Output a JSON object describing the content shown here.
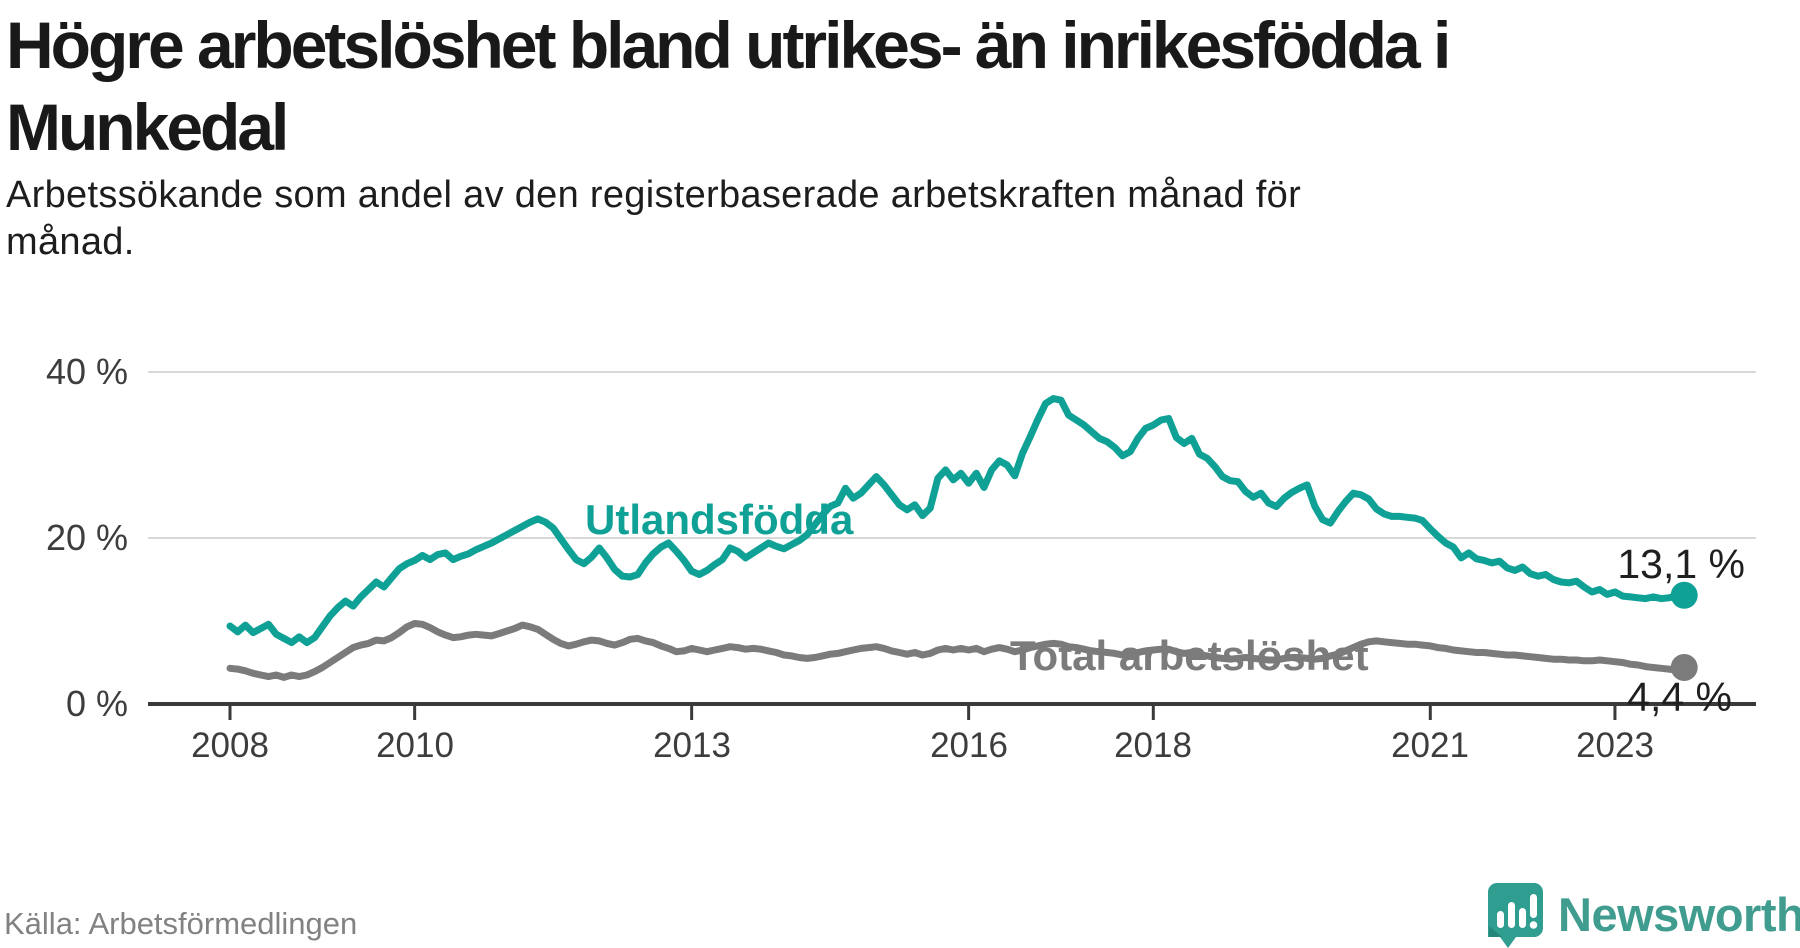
{
  "header": {
    "title_lines": [
      "Högre arbetslöshet bland utrikes- än inrikesfödda i",
      "Munkedal"
    ],
    "subtitle_lines": [
      "Arbetssökande som andel av den registerbaserade arbetskraften månad för",
      "månad."
    ]
  },
  "chart_data": {
    "type": "line",
    "title": "Högre arbetslöshet bland utrikes- än inrikesfödda i Munkedal",
    "subtitle": "Arbetssökande som andel av den registerbaserade arbetskraften månad för månad.",
    "grid": "horizontal",
    "legend_position": "inline-labels-on-lines",
    "x_axis": {
      "tick_labels": [
        "2008",
        "2010",
        "2013",
        "2016",
        "2018",
        "2021",
        "2023"
      ],
      "tick_years": [
        2008,
        2010,
        2013,
        2016,
        2018,
        2021,
        2023
      ],
      "range_years": [
        2008.0,
        2023.75
      ]
    },
    "y_axis": {
      "tick_labels": [
        "40 %",
        "20 %",
        "0 %"
      ],
      "tick_values": [
        40,
        20,
        0
      ],
      "unit": "%",
      "range": [
        0,
        42
      ]
    },
    "series": [
      {
        "name": "Utlandsfödda",
        "color": "#0fa096",
        "end_label": "13,1 %",
        "end_value": 13.1,
        "start_year": 2008,
        "points_per_year": 12,
        "values": [
          9.4,
          8.7,
          9.5,
          8.6,
          9.1,
          9.6,
          8.4,
          7.9,
          7.4,
          8.1,
          7.4,
          8.0,
          9.3,
          10.6,
          11.6,
          12.4,
          11.8,
          12.9,
          13.8,
          14.7,
          14.1,
          15.2,
          16.3,
          16.9,
          17.3,
          17.9,
          17.4,
          18.0,
          18.2,
          17.4,
          17.8,
          18.1,
          18.6,
          19.0,
          19.4,
          19.9,
          20.4,
          20.9,
          21.4,
          21.9,
          22.3,
          21.9,
          21.2,
          19.9,
          18.6,
          17.4,
          16.9,
          17.7,
          18.8,
          17.6,
          16.2,
          15.4,
          15.3,
          15.6,
          17.0,
          18.1,
          18.9,
          19.4,
          18.4,
          17.3,
          16.0,
          15.6,
          16.1,
          16.8,
          17.4,
          18.8,
          18.4,
          17.6,
          18.2,
          18.8,
          19.4,
          19.0,
          18.7,
          19.2,
          19.7,
          20.4,
          21.6,
          22.8,
          23.8,
          24.2,
          26.0,
          24.8,
          25.4,
          26.4,
          27.4,
          26.4,
          25.2,
          24.0,
          23.4,
          24.0,
          22.7,
          23.6,
          27.2,
          28.2,
          27.0,
          27.8,
          26.6,
          27.8,
          26.1,
          28.2,
          29.3,
          28.8,
          27.5,
          30.2,
          32.2,
          34.3,
          36.2,
          36.8,
          36.6,
          34.8,
          34.2,
          33.6,
          32.8,
          32.0,
          31.6,
          30.9,
          29.9,
          30.4,
          32.0,
          33.2,
          33.6,
          34.2,
          34.4,
          32.1,
          31.4,
          32.0,
          30.1,
          29.6,
          28.6,
          27.4,
          26.9,
          26.8,
          25.6,
          24.9,
          25.4,
          24.2,
          23.8,
          24.8,
          25.5,
          26.0,
          26.4,
          23.8,
          22.2,
          21.8,
          23.2,
          24.4,
          25.4,
          25.2,
          24.7,
          23.5,
          22.9,
          22.6,
          22.6,
          22.5,
          22.4,
          22.1,
          21.1,
          20.2,
          19.4,
          18.9,
          17.6,
          18.2,
          17.5,
          17.3,
          17.0,
          17.2,
          16.4,
          16.1,
          16.5,
          15.7,
          15.4,
          15.6,
          15.0,
          14.7,
          14.6,
          14.8,
          14.1,
          13.5,
          13.8,
          13.2,
          13.5,
          13.0,
          12.9,
          12.8,
          12.7,
          12.9,
          12.7,
          12.8,
          13.0,
          13.1
        ]
      },
      {
        "name": "Total arbetslöshet",
        "color": "#7b7b7b",
        "end_label": "4,4 %",
        "end_value": 4.4,
        "start_year": 2008,
        "points_per_year": 12,
        "values": [
          4.3,
          4.2,
          4.0,
          3.7,
          3.5,
          3.3,
          3.5,
          3.2,
          3.5,
          3.3,
          3.5,
          3.9,
          4.4,
          5.0,
          5.6,
          6.2,
          6.8,
          7.1,
          7.3,
          7.7,
          7.6,
          8.0,
          8.6,
          9.3,
          9.7,
          9.6,
          9.2,
          8.7,
          8.3,
          8.0,
          8.1,
          8.3,
          8.4,
          8.3,
          8.2,
          8.5,
          8.8,
          9.1,
          9.5,
          9.3,
          9.0,
          8.4,
          7.8,
          7.3,
          7.0,
          7.2,
          7.5,
          7.7,
          7.6,
          7.3,
          7.1,
          7.4,
          7.8,
          7.9,
          7.6,
          7.4,
          7.0,
          6.7,
          6.3,
          6.4,
          6.7,
          6.5,
          6.3,
          6.5,
          6.7,
          6.9,
          6.8,
          6.6,
          6.7,
          6.6,
          6.4,
          6.2,
          5.9,
          5.8,
          5.6,
          5.5,
          5.6,
          5.8,
          6.0,
          6.1,
          6.3,
          6.5,
          6.7,
          6.8,
          6.9,
          6.7,
          6.4,
          6.2,
          6.0,
          6.2,
          5.9,
          6.1,
          6.5,
          6.7,
          6.5,
          6.7,
          6.5,
          6.7,
          6.3,
          6.6,
          6.8,
          6.6,
          6.3,
          6.5,
          6.8,
          7.0,
          7.2,
          7.3,
          7.2,
          6.9,
          6.8,
          6.6,
          6.4,
          6.3,
          6.2,
          6.1,
          5.9,
          6.0,
          6.2,
          6.4,
          6.5,
          6.6,
          6.6,
          6.3,
          6.1,
          6.2,
          5.9,
          5.8,
          5.6,
          5.5,
          5.4,
          5.5,
          5.6,
          5.5,
          5.4,
          5.3,
          5.3,
          5.5,
          5.6,
          5.6,
          5.5,
          5.4,
          5.5,
          5.8,
          6.0,
          6.4,
          6.8,
          7.2,
          7.5,
          7.6,
          7.5,
          7.4,
          7.3,
          7.2,
          7.2,
          7.1,
          7.0,
          6.8,
          6.7,
          6.5,
          6.4,
          6.3,
          6.2,
          6.2,
          6.1,
          6.0,
          5.9,
          5.9,
          5.8,
          5.7,
          5.6,
          5.5,
          5.4,
          5.4,
          5.3,
          5.3,
          5.2,
          5.2,
          5.3,
          5.2,
          5.1,
          5.0,
          4.8,
          4.7,
          4.5,
          4.4,
          4.3,
          4.2,
          4.1,
          4.4
        ]
      }
    ]
  },
  "footer": {
    "source": "Källa: Arbetsförmedlingen",
    "brand_name": "Newsworthy"
  },
  "colors": {
    "accent_teal": "#0fa096",
    "series_gray": "#7b7b7b",
    "axis": "#3a3a3a",
    "gridline": "#d9d9d9",
    "brand_teal": "#3f9c8e"
  }
}
